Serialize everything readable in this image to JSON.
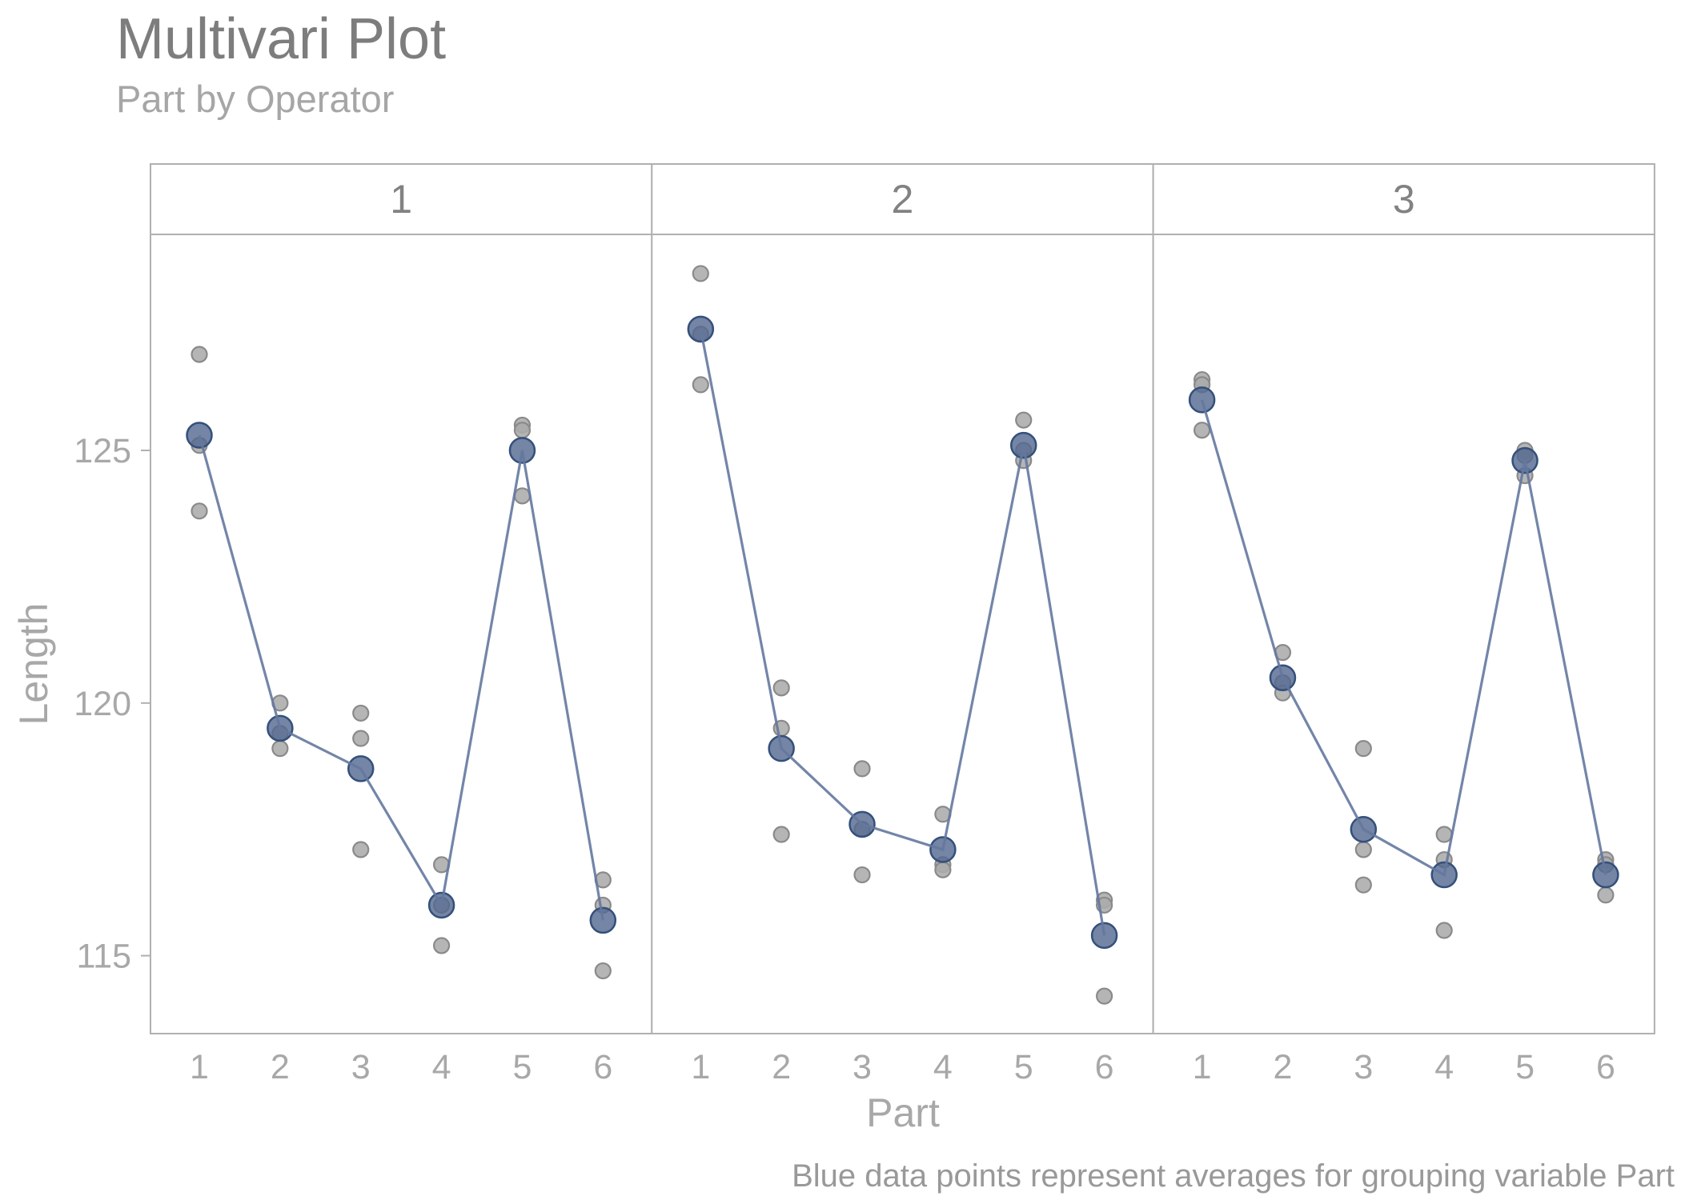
{
  "title": "Multivari Plot",
  "subtitle": "Part by Operator",
  "caption": "Blue data points represent averages for grouping variable Part",
  "x_axis_title": "Part",
  "y_axis_title": "Length",
  "chart_data": {
    "type": "scatter",
    "facet_variable": "Operator",
    "x_variable": "Part",
    "y_variable": "Length",
    "x_categories": [
      "1",
      "2",
      "3",
      "4",
      "5",
      "6"
    ],
    "y_ticks": [
      125,
      120,
      115
    ],
    "y_range": [
      113.4,
      129.2
    ],
    "grid": false,
    "legend_position": "none",
    "panels": [
      {
        "operator": "1",
        "individuals": [
          [
            126.9,
            125.1,
            123.8
          ],
          [
            120.0,
            119.4,
            119.1
          ],
          [
            119.8,
            119.3,
            117.1
          ],
          [
            116.8,
            116.0,
            115.2
          ],
          [
            125.5,
            125.4,
            124.1
          ],
          [
            116.5,
            116.0,
            114.7
          ]
        ],
        "averages": [
          125.3,
          119.5,
          118.7,
          116.0,
          125.0,
          115.7
        ]
      },
      {
        "operator": "2",
        "individuals": [
          [
            128.5,
            127.3,
            126.3
          ],
          [
            120.3,
            119.5,
            117.4
          ],
          [
            118.7,
            117.5,
            116.6
          ],
          [
            117.8,
            116.8,
            116.7
          ],
          [
            125.6,
            125.0,
            124.8
          ],
          [
            116.1,
            116.0,
            114.2
          ]
        ],
        "averages": [
          127.4,
          119.1,
          117.6,
          117.1,
          125.1,
          115.4
        ]
      },
      {
        "operator": "3",
        "individuals": [
          [
            126.4,
            126.3,
            125.4
          ],
          [
            121.0,
            120.4,
            120.2
          ],
          [
            119.1,
            117.1,
            116.4
          ],
          [
            117.4,
            116.9,
            115.5
          ],
          [
            125.0,
            124.9,
            124.5
          ],
          [
            116.9,
            116.8,
            116.2
          ]
        ],
        "averages": [
          126.0,
          120.5,
          117.5,
          116.6,
          124.8,
          116.6
        ]
      }
    ],
    "colors": {
      "average_point": "#51678f",
      "average_stroke": "#34507a",
      "individual_point": "#ababab",
      "individual_stroke": "#8a8a8a",
      "line": "#64789e",
      "panel_border": "#b0b0b0",
      "strip_background": "#ffffff",
      "title_text": "#7d7d7d",
      "axis_text": "#a8a8a8"
    }
  }
}
